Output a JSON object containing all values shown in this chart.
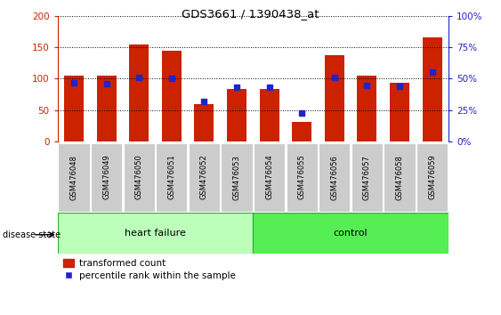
{
  "title": "GDS3661 / 1390438_at",
  "categories": [
    "GSM476048",
    "GSM476049",
    "GSM476050",
    "GSM476051",
    "GSM476052",
    "GSM476053",
    "GSM476054",
    "GSM476055",
    "GSM476056",
    "GSM476057",
    "GSM476058",
    "GSM476059"
  ],
  "red_values": [
    105,
    105,
    154,
    144,
    60,
    84,
    84,
    32,
    137,
    105,
    93,
    165
  ],
  "blue_values_pct": [
    47,
    46,
    51,
    50,
    32,
    43,
    43,
    23,
    51,
    45,
    44,
    55
  ],
  "ylim_left": [
    0,
    200
  ],
  "ylim_right": [
    0,
    100
  ],
  "yticks_left": [
    0,
    50,
    100,
    150,
    200
  ],
  "yticks_right": [
    0,
    25,
    50,
    75,
    100
  ],
  "yticklabels_right": [
    "0%",
    "25%",
    "50%",
    "75%",
    "100%"
  ],
  "heart_failure_count": 6,
  "control_count": 6,
  "heart_failure_label": "heart failure",
  "control_label": "control",
  "disease_state_label": "disease state",
  "legend_red": "transformed count",
  "legend_blue": "percentile rank within the sample",
  "red_color": "#CC2200",
  "blue_color": "#2222CC",
  "hf_color": "#BBFFBB",
  "ctrl_color": "#55EE55",
  "band_edge": "#33AA33",
  "gray_box": "#CCCCCC",
  "bar_width": 0.6
}
